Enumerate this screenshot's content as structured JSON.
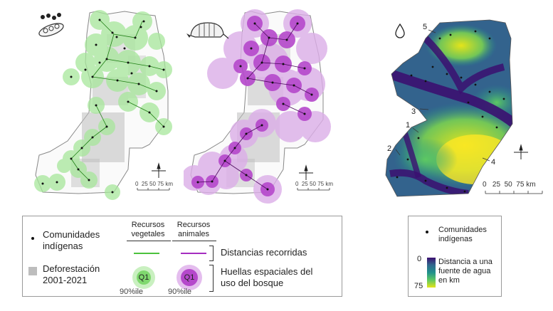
{
  "maps": {
    "plant": {
      "scale": {
        "ticks": [
          "0",
          "25",
          "50",
          "75"
        ],
        "unit": "km"
      }
    },
    "animal": {
      "scale": {
        "ticks": [
          "0",
          "25",
          "50",
          "75"
        ],
        "unit": "km"
      }
    },
    "water": {
      "scale": {
        "ticks": [
          "0",
          "25",
          "50",
          "75"
        ],
        "unit": "km"
      },
      "zone_labels": [
        "1",
        "2",
        "3",
        "4",
        "5"
      ]
    }
  },
  "legend_left": {
    "communities_label": "Comunidades\nindígenas",
    "deforestation_label": "Deforestación\n2001-2021",
    "col_plant_header": "Recursos\nvegetales",
    "col_animal_header": "Recursos\nanimales",
    "distances_label": "Distancias recorridas",
    "footprint_label": "Huellas espaciales del\nuso del bosque",
    "q1_label": "Q1",
    "percentile_label": "90%ile"
  },
  "legend_right": {
    "communities_label": "Comunidades\nindígenas",
    "colorbar_min": "0",
    "colorbar_max": "75",
    "colorbar_label": "Distancia a una\nfuente de agua\nen km"
  },
  "colors": {
    "plant_green": "#4cc23c",
    "plant_halo": "#a7e79b",
    "animal_purple": "#a52dc0",
    "animal_halo": "#d9a6e6",
    "deforestation_gray": "#bdbdbd",
    "viridis_dark": "#3b0f70",
    "viridis_yellow": "#e5e419"
  }
}
